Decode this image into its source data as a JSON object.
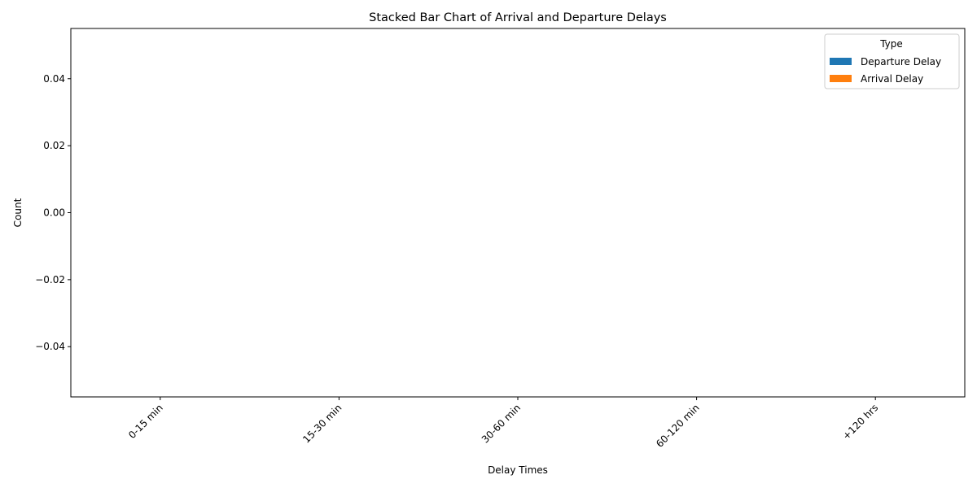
{
  "chart_data": {
    "type": "bar",
    "stacked": true,
    "title": "Stacked Bar Chart of Arrival and Departure Delays",
    "xlabel": "Delay Times",
    "ylabel": "Count",
    "categories": [
      "0-15 min",
      "15-30 min",
      "30-60 min",
      "60-120 min",
      "+120 hrs"
    ],
    "series": [
      {
        "name": "Departure Delay",
        "color": "#1f77b4",
        "values": [
          0,
          0,
          0,
          0,
          0
        ]
      },
      {
        "name": "Arrival Delay",
        "color": "#ff7f0e",
        "values": [
          0,
          0,
          0,
          0,
          0
        ]
      }
    ],
    "ylim": [
      -0.055,
      0.055
    ],
    "yticks": [
      -0.04,
      -0.02,
      0.0,
      0.02,
      0.04
    ],
    "ytick_labels": [
      "−0.04",
      "−0.02",
      "0.00",
      "0.02",
      "0.04"
    ],
    "legend": {
      "title": "Type",
      "placement": "top-right"
    },
    "grid": false
  }
}
